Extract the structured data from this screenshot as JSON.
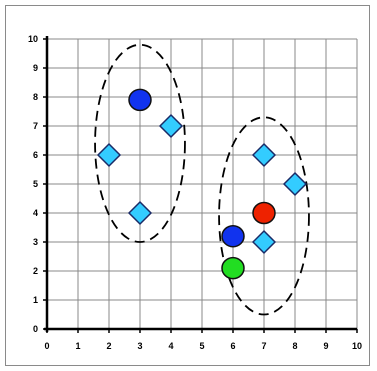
{
  "chart_data": {
    "type": "scatter",
    "title": "",
    "xlabel": "",
    "ylabel": "",
    "xlim": [
      0,
      10
    ],
    "ylim": [
      0,
      10
    ],
    "x_ticks": [
      "0",
      "1",
      "2",
      "3",
      "4",
      "5",
      "6",
      "7",
      "8",
      "9",
      "10"
    ],
    "y_ticks": [
      "0",
      "1",
      "2",
      "3",
      "4",
      "5",
      "6",
      "7",
      "8",
      "9",
      "10"
    ],
    "grid": true,
    "series": [
      {
        "marker": "diamond",
        "color": "#33ccff",
        "points": [
          {
            "x": 2,
            "y": 6
          },
          {
            "x": 3,
            "y": 4
          },
          {
            "x": 4,
            "y": 7
          },
          {
            "x": 7,
            "y": 6
          },
          {
            "x": 8,
            "y": 5
          },
          {
            "x": 7,
            "y": 3
          }
        ]
      },
      {
        "marker": "circle",
        "color": "#1133ee",
        "points": [
          {
            "x": 3,
            "y": 7.9
          },
          {
            "x": 6,
            "y": 3.2
          }
        ]
      },
      {
        "marker": "circle",
        "color": "#ee2200",
        "points": [
          {
            "x": 7,
            "y": 4
          }
        ]
      },
      {
        "marker": "circle",
        "color": "#22dd22",
        "points": [
          {
            "x": 6,
            "y": 2.1
          }
        ]
      }
    ],
    "clusters": [
      {
        "center_x": 3,
        "center_y": 6.4,
        "radius_x": 1.45,
        "radius_y": 3.4,
        "style": "dashed"
      },
      {
        "center_x": 7,
        "center_y": 3.9,
        "radius_x": 1.45,
        "radius_y": 3.4,
        "style": "dashed"
      }
    ]
  }
}
